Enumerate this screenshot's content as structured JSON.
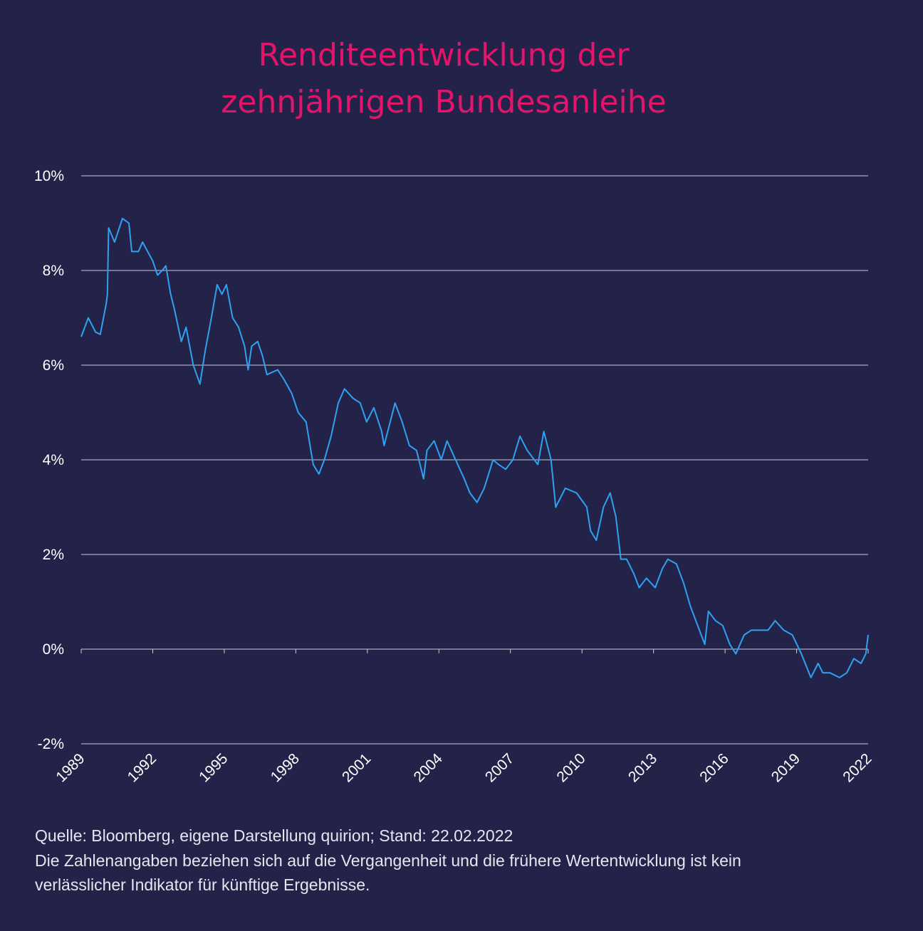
{
  "chart_data": {
    "type": "line",
    "title": [
      "Renditeentwicklung der",
      "zehnjährigen Bundesanleihe"
    ],
    "notes": [
      "Quelle: Bloomberg, eigene Darstellung quirion; Stand: 22.02.2022",
      "Die Zahlenangaben beziehen sich auf die Vergangenheit und die frühere Wertentwicklung ist kein",
      "verlässlicher Indikator für künftige Ergebnisse."
    ],
    "x": [
      1989.0,
      1989.3,
      1989.6,
      1989.8,
      1990.05,
      1990.1,
      1990.15,
      1990.4,
      1990.6,
      1990.73,
      1991.0,
      1991.12,
      1991.4,
      1991.57,
      1992.0,
      1992.2,
      1992.4,
      1992.55,
      1992.75,
      1992.9,
      1993.2,
      1993.4,
      1993.7,
      1993.98,
      1994.2,
      1994.46,
      1994.7,
      1994.9,
      1995.09,
      1995.35,
      1995.6,
      1995.85,
      1996.0,
      1996.15,
      1996.4,
      1996.6,
      1996.79,
      1997.24,
      1997.5,
      1997.83,
      1998.1,
      1998.43,
      1998.73,
      1998.97,
      1999.2,
      1999.48,
      1999.78,
      2000.04,
      2000.4,
      2000.7,
      2000.97,
      2001.27,
      2001.6,
      2001.7,
      2002.16,
      2002.46,
      2002.76,
      2003.06,
      2003.36,
      2003.5,
      2003.8,
      2004.1,
      2004.34,
      2004.7,
      2005.06,
      2005.3,
      2005.6,
      2005.9,
      2006.27,
      2006.5,
      2006.8,
      2007.1,
      2007.4,
      2007.7,
      2008.0,
      2008.15,
      2008.4,
      2008.7,
      2008.9,
      2009.3,
      2009.77,
      2010.2,
      2010.36,
      2010.6,
      2010.9,
      2011.18,
      2011.42,
      2011.63,
      2011.87,
      2012.17,
      2012.4,
      2012.7,
      2013.07,
      2013.37,
      2013.6,
      2013.96,
      2014.26,
      2014.55,
      2014.85,
      2015.15,
      2015.3,
      2015.6,
      2015.9,
      2016.2,
      2016.45,
      2016.8,
      2017.1,
      2017.4,
      2017.8,
      2018.1,
      2018.46,
      2018.82,
      2019.2,
      2019.6,
      2019.9,
      2020.1,
      2020.4,
      2020.8,
      2021.1,
      2021.4,
      2021.7,
      2021.9,
      2022.0
    ],
    "series": [
      {
        "color": "#2fa1f2",
        "values": [
          6.6,
          7.0,
          6.7,
          6.65,
          7.3,
          7.5,
          8.9,
          8.6,
          8.9,
          9.1,
          9.0,
          8.4,
          8.4,
          8.6,
          8.2,
          7.9,
          8.0,
          8.1,
          7.5,
          7.2,
          6.5,
          6.8,
          6.0,
          5.6,
          6.3,
          7.0,
          7.7,
          7.5,
          7.7,
          7.0,
          6.8,
          6.4,
          5.9,
          6.4,
          6.5,
          6.2,
          5.8,
          5.9,
          5.7,
          5.4,
          5.0,
          4.8,
          3.9,
          3.7,
          4.0,
          4.5,
          5.2,
          5.5,
          5.3,
          5.2,
          4.8,
          5.1,
          4.6,
          4.3,
          5.2,
          4.8,
          4.3,
          4.2,
          3.6,
          4.2,
          4.4,
          4.0,
          4.4,
          4.0,
          3.6,
          3.3,
          3.1,
          3.4,
          4.0,
          3.9,
          3.8,
          4.0,
          4.5,
          4.2,
          4.0,
          3.9,
          4.6,
          4.0,
          3.0,
          3.4,
          3.3,
          3.0,
          2.5,
          2.3,
          3.0,
          3.3,
          2.8,
          1.9,
          1.9,
          1.6,
          1.3,
          1.5,
          1.3,
          1.7,
          1.9,
          1.8,
          1.4,
          0.9,
          0.5,
          0.1,
          0.8,
          0.6,
          0.5,
          0.1,
          -0.1,
          0.3,
          0.4,
          0.4,
          0.4,
          0.6,
          0.4,
          0.3,
          -0.1,
          -0.6,
          -0.3,
          -0.5,
          -0.5,
          -0.6,
          -0.5,
          -0.2,
          -0.3,
          -0.1,
          0.3
        ]
      }
    ],
    "xlim": [
      1989,
      2022
    ],
    "xticks": [
      1989,
      1992,
      1995,
      1998,
      2001,
      2004,
      2007,
      2010,
      2013,
      2016,
      2019,
      2022
    ],
    "ylim": [
      -2,
      10
    ],
    "yticks": [
      {
        "value": -2,
        "label": "-2%"
      },
      {
        "value": 0,
        "label": "0%"
      },
      {
        "value": 2,
        "label": "2%"
      },
      {
        "value": 4,
        "label": "4%"
      },
      {
        "value": 6,
        "label": "6%"
      },
      {
        "value": 8,
        "label": "8%"
      },
      {
        "value": 10,
        "label": "10%"
      }
    ],
    "grid": true
  }
}
